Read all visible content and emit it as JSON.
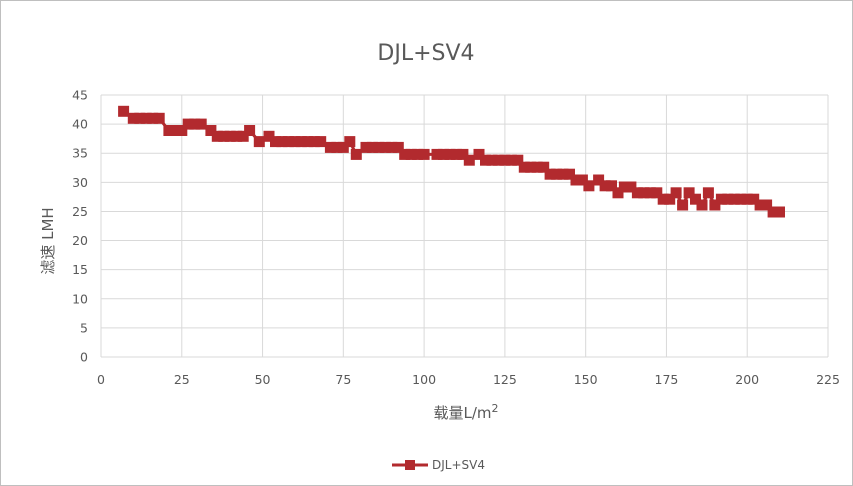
{
  "chart_data": {
    "type": "line",
    "title": "DJL+SV4",
    "xlabel": "载量L/m",
    "xlabel_superscript": "2",
    "ylabel": "滤速 LMH",
    "xlim": [
      0,
      225
    ],
    "ylim": [
      0,
      45
    ],
    "x_ticks": [
      "0",
      "25",
      "50",
      "75",
      "100",
      "125",
      "150",
      "175",
      "200",
      "225"
    ],
    "y_ticks": [
      "0",
      "5",
      "10",
      "15",
      "20",
      "25",
      "30",
      "35",
      "40",
      "45"
    ],
    "grid": true,
    "legend_position": "bottom",
    "series": [
      {
        "name": "DJL+SV4",
        "color": "#b22a2e",
        "marker": "square",
        "points": [
          [
            7,
            42.2
          ],
          [
            10,
            41
          ],
          [
            12,
            41
          ],
          [
            14,
            41
          ],
          [
            16,
            41
          ],
          [
            18,
            41
          ],
          [
            21,
            38.9
          ],
          [
            23,
            38.9
          ],
          [
            25,
            38.9
          ],
          [
            27,
            40
          ],
          [
            29,
            40
          ],
          [
            31,
            40
          ],
          [
            34,
            38.9
          ],
          [
            36,
            37.9
          ],
          [
            38,
            37.9
          ],
          [
            40,
            37.9
          ],
          [
            42,
            37.9
          ],
          [
            44,
            37.9
          ],
          [
            46,
            38.9
          ],
          [
            49,
            37
          ],
          [
            52,
            37.9
          ],
          [
            54,
            37
          ],
          [
            56,
            37
          ],
          [
            58,
            37
          ],
          [
            60,
            37
          ],
          [
            62,
            37
          ],
          [
            64,
            37
          ],
          [
            66,
            37
          ],
          [
            68,
            37
          ],
          [
            71,
            36
          ],
          [
            73,
            36
          ],
          [
            75,
            36
          ],
          [
            77,
            37
          ],
          [
            79,
            34.8
          ],
          [
            82,
            36
          ],
          [
            84,
            36
          ],
          [
            86,
            36
          ],
          [
            88,
            36
          ],
          [
            90,
            36
          ],
          [
            92,
            36
          ],
          [
            94,
            34.8
          ],
          [
            96,
            34.8
          ],
          [
            98,
            34.8
          ],
          [
            100,
            34.8
          ],
          [
            104,
            34.8
          ],
          [
            106,
            34.8
          ],
          [
            108,
            34.8
          ],
          [
            110,
            34.8
          ],
          [
            112,
            34.8
          ],
          [
            114,
            33.8
          ],
          [
            117,
            34.8
          ],
          [
            119,
            33.8
          ],
          [
            121,
            33.8
          ],
          [
            123,
            33.8
          ],
          [
            125,
            33.8
          ],
          [
            127,
            33.8
          ],
          [
            129,
            33.8
          ],
          [
            131,
            32.6
          ],
          [
            133,
            32.6
          ],
          [
            135,
            32.6
          ],
          [
            137,
            32.6
          ],
          [
            139,
            31.4
          ],
          [
            141,
            31.4
          ],
          [
            143,
            31.4
          ],
          [
            145,
            31.4
          ],
          [
            147,
            30.4
          ],
          [
            149,
            30.4
          ],
          [
            151,
            29.4
          ],
          [
            154,
            30.4
          ],
          [
            156,
            29.4
          ],
          [
            158,
            29.4
          ],
          [
            160,
            28.2
          ],
          [
            162,
            29.2
          ],
          [
            164,
            29.2
          ],
          [
            166,
            28.2
          ],
          [
            168,
            28.2
          ],
          [
            170,
            28.2
          ],
          [
            172,
            28.2
          ],
          [
            174,
            27.1
          ],
          [
            176,
            27.1
          ],
          [
            178,
            28.2
          ],
          [
            180,
            26.1
          ],
          [
            182,
            28.2
          ],
          [
            184,
            27.1
          ],
          [
            186,
            26.1
          ],
          [
            188,
            28.2
          ],
          [
            190,
            26.1
          ],
          [
            192,
            27.1
          ],
          [
            194,
            27.1
          ],
          [
            196,
            27.1
          ],
          [
            198,
            27.1
          ],
          [
            200,
            27.1
          ],
          [
            202,
            27.1
          ],
          [
            204,
            26.1
          ],
          [
            206,
            26.1
          ],
          [
            208,
            24.9
          ],
          [
            210,
            24.9
          ]
        ]
      }
    ]
  }
}
